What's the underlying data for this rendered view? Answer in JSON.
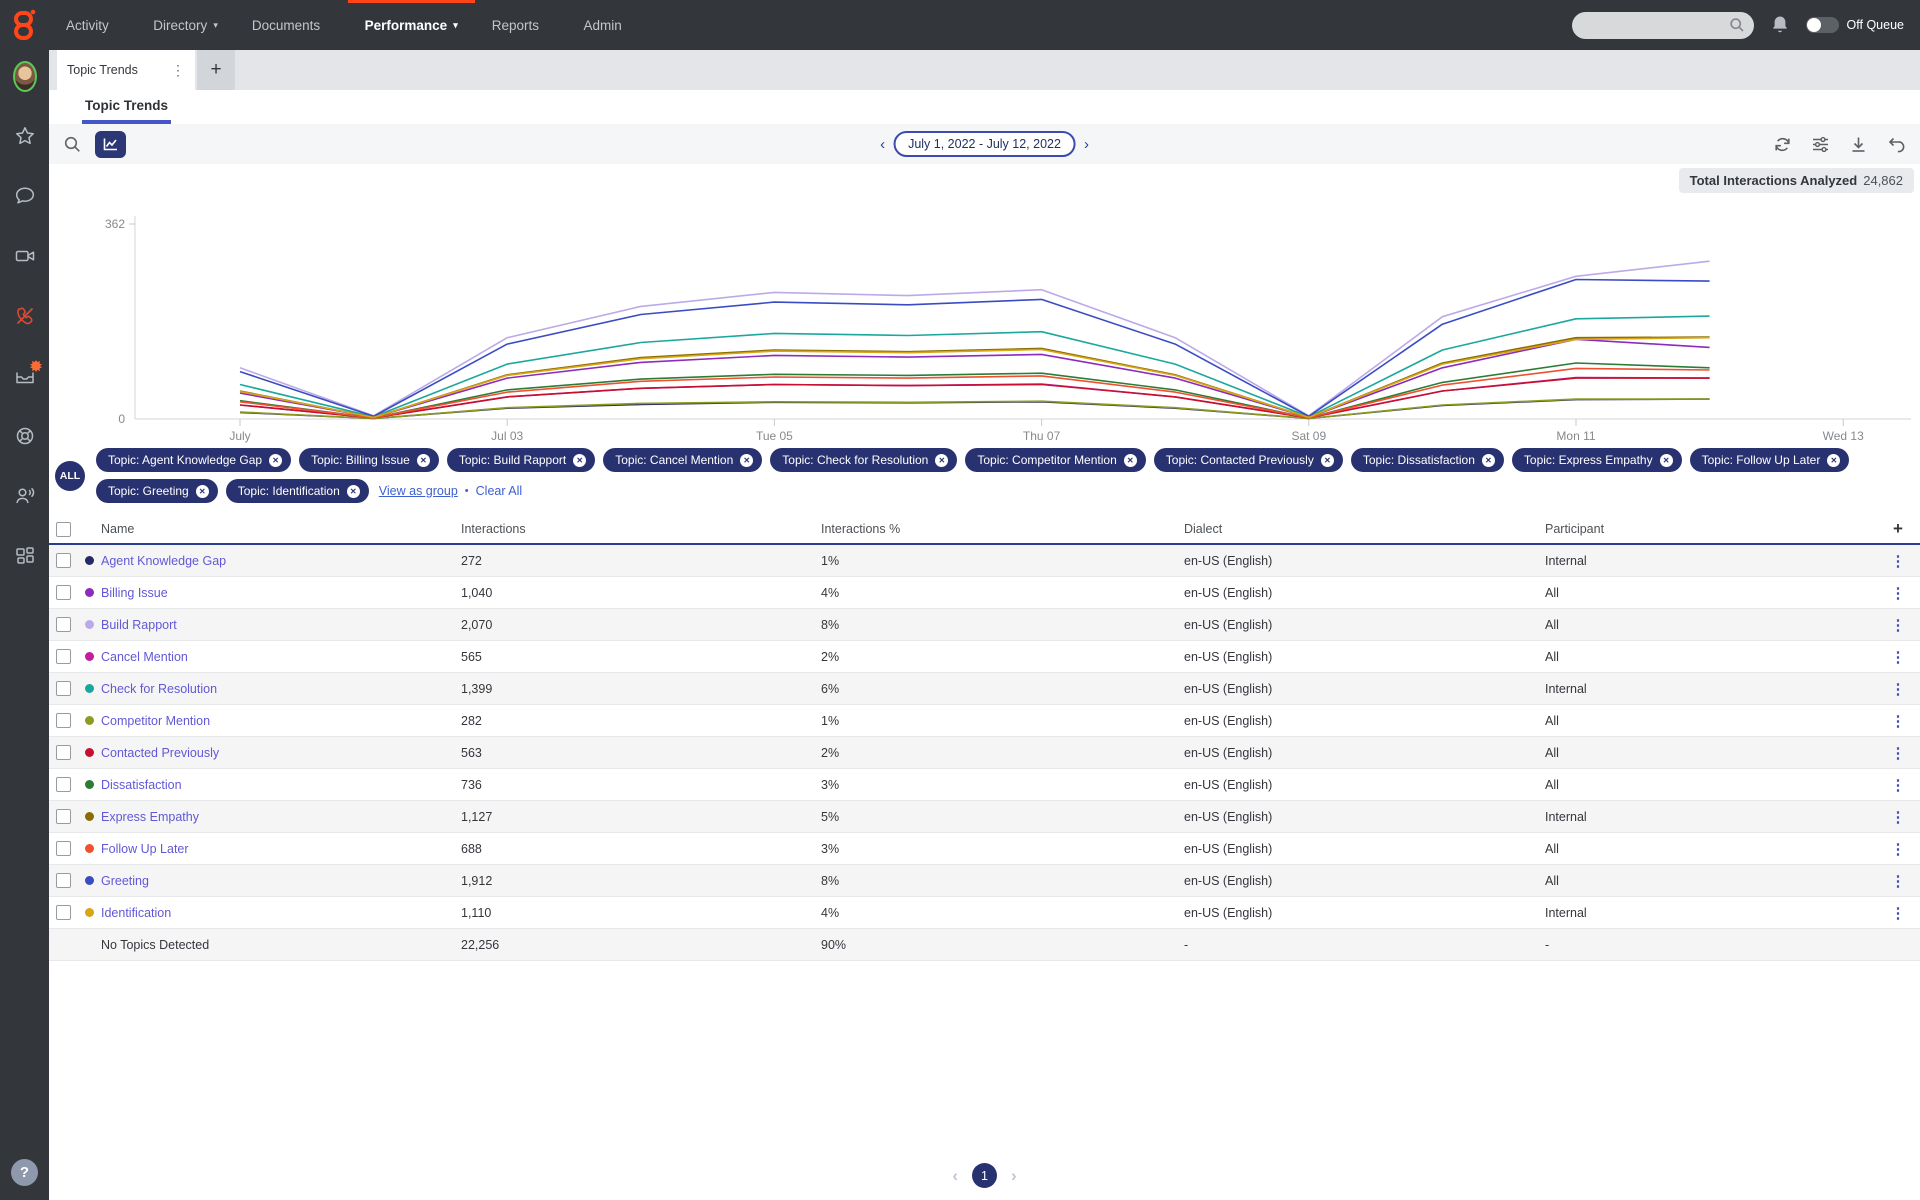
{
  "nav": {
    "items": [
      {
        "label": "Activity",
        "caret": false,
        "active": false
      },
      {
        "label": "Directory",
        "caret": true,
        "active": false
      },
      {
        "label": "Documents",
        "caret": false,
        "active": false
      },
      {
        "label": "Performance",
        "caret": true,
        "active": true
      },
      {
        "label": "Reports",
        "caret": false,
        "active": false
      },
      {
        "label": "Admin",
        "caret": false,
        "active": false
      }
    ],
    "search_placeholder": "",
    "off_queue_label": "Off Queue"
  },
  "sidebar": {
    "icons": [
      "avatar",
      "favorites-star",
      "chat",
      "video",
      "phone-disabled",
      "inbox-notification",
      "target",
      "agent-voice",
      "apps-grid",
      "help"
    ]
  },
  "tabs": {
    "workspace_tab": "Topic Trends",
    "page_tab": "Topic Trends",
    "add_tab_label": "+",
    "kebab": "⋮"
  },
  "toolbar": {
    "date_range": "July 1, 2022 - July 12, 2022",
    "prev": "‹",
    "next": "›",
    "icons": [
      "refresh",
      "filter-settings",
      "download",
      "undo"
    ]
  },
  "summary": {
    "label": "Total Interactions Analyzed",
    "value": "24,862"
  },
  "chart_data": {
    "type": "line",
    "title": "Topic Trends",
    "x": [
      "Jul 01",
      "Jul 02",
      "Jul 03",
      "Jul 04",
      "Jul 05",
      "Jul 06",
      "Jul 07",
      "Jul 08",
      "Jul 09",
      "Jul 10",
      "Jul 11",
      "Jul 12"
    ],
    "x_tick_labels": [
      "July",
      "Jul 03",
      "Tue 05",
      "Thu 07",
      "Sat 09",
      "Mon 11",
      "Wed 13"
    ],
    "x_tick_positions": [
      0,
      2,
      4,
      6,
      8,
      10,
      12
    ],
    "ylim": [
      0,
      362
    ],
    "y_tick_labels": [
      "0",
      "362"
    ],
    "grid": false,
    "legend_position": "none",
    "series": [
      {
        "name": "Agent Knowledge Gap",
        "color": "#262a66",
        "values": [
          12,
          1,
          20,
          27,
          31,
          30,
          32,
          20,
          1,
          25,
          36,
          37
        ]
      },
      {
        "name": "Billing Issue",
        "color": "#8c2bbe",
        "values": [
          48,
          3,
          76,
          105,
          118,
          115,
          120,
          76,
          3,
          95,
          148,
          133
        ]
      },
      {
        "name": "Build Rapport",
        "color": "#bcaae8",
        "values": [
          95,
          6,
          151,
          209,
          235,
          229,
          240,
          151,
          6,
          190,
          265,
          293
        ]
      },
      {
        "name": "Cancel Mention",
        "color": "#c21ea0",
        "values": [
          26,
          2,
          41,
          57,
          64,
          62,
          65,
          41,
          2,
          52,
          77,
          76
        ]
      },
      {
        "name": "Check for Resolution",
        "color": "#1aa89e",
        "values": [
          64,
          4,
          102,
          142,
          159,
          155,
          162,
          102,
          4,
          128,
          186,
          191
        ]
      },
      {
        "name": "Competitor Mention",
        "color": "#8d9c1e",
        "values": [
          13,
          1,
          21,
          29,
          32,
          31,
          33,
          21,
          1,
          26,
          37,
          37
        ]
      },
      {
        "name": "Contacted Previously",
        "color": "#c6102e",
        "values": [
          26,
          2,
          41,
          57,
          64,
          62,
          64,
          41,
          2,
          52,
          76,
          76
        ]
      },
      {
        "name": "Dissatisfaction",
        "color": "#2b7d36",
        "values": [
          34,
          2,
          54,
          74,
          83,
          81,
          85,
          54,
          2,
          68,
          104,
          95
        ]
      },
      {
        "name": "Express Empathy",
        "color": "#8a6d00",
        "values": [
          52,
          3,
          82,
          114,
          128,
          125,
          131,
          82,
          3,
          104,
          151,
          152
        ]
      },
      {
        "name": "Follow Up Later",
        "color": "#f0502e",
        "values": [
          32,
          2,
          50,
          70,
          78,
          76,
          80,
          50,
          2,
          63,
          94,
          91
        ]
      },
      {
        "name": "Greeting",
        "color": "#3a4cc4",
        "values": [
          88,
          5,
          139,
          194,
          217,
          212,
          222,
          139,
          5,
          176,
          259,
          256
        ]
      },
      {
        "name": "Identification",
        "color": "#d8a514",
        "values": [
          51,
          3,
          81,
          112,
          126,
          123,
          129,
          81,
          3,
          102,
          148,
          151
        ]
      }
    ]
  },
  "filters": {
    "all_label": "ALL",
    "pills": [
      {
        "label": "Topic: Agent Knowledge Gap"
      },
      {
        "label": "Topic: Billing Issue"
      },
      {
        "label": "Topic: Build Rapport"
      },
      {
        "label": "Topic: Cancel Mention"
      },
      {
        "label": "Topic: Check for Resolution"
      },
      {
        "label": "Topic: Competitor Mention"
      },
      {
        "label": "Topic: Contacted Previously"
      },
      {
        "label": "Topic: Dissatisfaction"
      },
      {
        "label": "Topic: Express Empathy"
      },
      {
        "label": "Topic: Follow Up Later"
      },
      {
        "label": "Topic: Greeting"
      },
      {
        "label": "Topic: Identification"
      }
    ],
    "remove_glyph": "✕",
    "view_as_group": "View as group",
    "separator": "•",
    "clear_all": "Clear All"
  },
  "table": {
    "columns": [
      "Name",
      "Interactions",
      "Interactions %",
      "Dialect",
      "Participant"
    ],
    "add_column_label": "+",
    "row_kebab": "⋮",
    "rows": [
      {
        "name": "Agent Knowledge Gap",
        "color": "#262a66",
        "interactions": "272",
        "pct": "1%",
        "dialect": "en-US (English)",
        "participant": "Internal",
        "controls": true
      },
      {
        "name": "Billing Issue",
        "color": "#8c2bbe",
        "interactions": "1,040",
        "pct": "4%",
        "dialect": "en-US (English)",
        "participant": "All",
        "controls": true
      },
      {
        "name": "Build Rapport",
        "color": "#bcaae8",
        "interactions": "2,070",
        "pct": "8%",
        "dialect": "en-US (English)",
        "participant": "All",
        "controls": true
      },
      {
        "name": "Cancel Mention",
        "color": "#c21ea0",
        "interactions": "565",
        "pct": "2%",
        "dialect": "en-US (English)",
        "participant": "All",
        "controls": true
      },
      {
        "name": "Check for Resolution",
        "color": "#1aa89e",
        "interactions": "1,399",
        "pct": "6%",
        "dialect": "en-US (English)",
        "participant": "Internal",
        "controls": true
      },
      {
        "name": "Competitor Mention",
        "color": "#8d9c1e",
        "interactions": "282",
        "pct": "1%",
        "dialect": "en-US (English)",
        "participant": "All",
        "controls": true
      },
      {
        "name": "Contacted Previously",
        "color": "#c6102e",
        "interactions": "563",
        "pct": "2%",
        "dialect": "en-US (English)",
        "participant": "All",
        "controls": true
      },
      {
        "name": "Dissatisfaction",
        "color": "#2b7d36",
        "interactions": "736",
        "pct": "3%",
        "dialect": "en-US (English)",
        "participant": "All",
        "controls": true
      },
      {
        "name": "Express Empathy",
        "color": "#8a6d00",
        "interactions": "1,127",
        "pct": "5%",
        "dialect": "en-US (English)",
        "participant": "Internal",
        "controls": true
      },
      {
        "name": "Follow Up Later",
        "color": "#f0502e",
        "interactions": "688",
        "pct": "3%",
        "dialect": "en-US (English)",
        "participant": "All",
        "controls": true
      },
      {
        "name": "Greeting",
        "color": "#3a4cc4",
        "interactions": "1,912",
        "pct": "8%",
        "dialect": "en-US (English)",
        "participant": "All",
        "controls": true
      },
      {
        "name": "Identification",
        "color": "#d8a514",
        "interactions": "1,110",
        "pct": "4%",
        "dialect": "en-US (English)",
        "participant": "Internal",
        "controls": true
      },
      {
        "name": "No Topics Detected",
        "color": null,
        "interactions": "22,256",
        "pct": "90%",
        "dialect": "-",
        "participant": "-",
        "controls": false,
        "plain": true
      }
    ]
  },
  "pagination": {
    "prev": "‹",
    "page": "1",
    "next": "›"
  },
  "colors": {
    "nav_bg": "#33373c",
    "accent_orange": "#ff451a",
    "accent_navy": "#293270",
    "link_violet": "#6258d5",
    "link_blue": "#3e5fd0",
    "header_rule": "#2a3e8f"
  }
}
